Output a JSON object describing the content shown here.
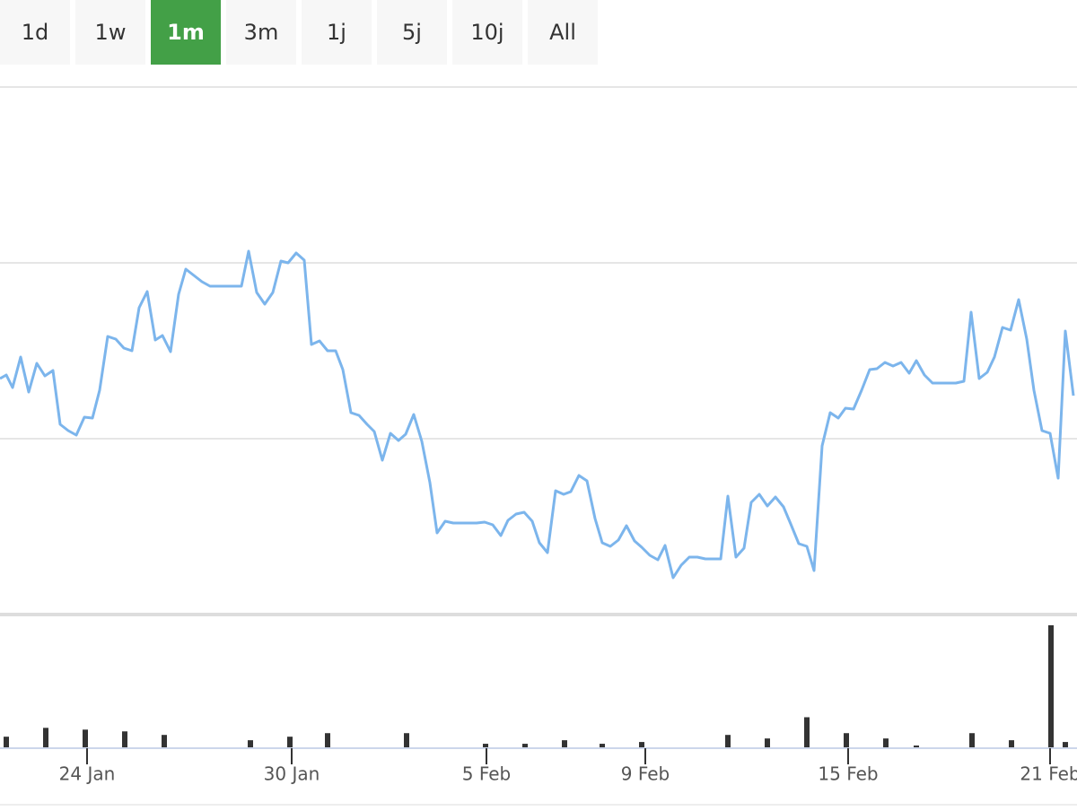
{
  "range_buttons": {
    "labels": [
      "1d",
      "1w",
      "1m",
      "3m",
      "1j",
      "5j",
      "10j",
      "All"
    ],
    "active": "1m",
    "active_color": "#43a047"
  },
  "chart_data": [
    {
      "type": "line",
      "color": "#7cb5ec",
      "xlim": [
        0,
        1200
      ],
      "ylim": [
        0,
        588
      ],
      "yticks": [
        0,
        196,
        392,
        588
      ],
      "grid": true,
      "x": [
        0,
        7,
        14,
        23,
        32,
        41,
        50,
        59,
        67,
        76,
        85,
        94,
        103,
        111,
        120,
        129,
        138,
        147,
        155,
        164,
        173,
        181,
        190,
        199,
        207,
        216,
        225,
        234,
        242,
        251,
        260,
        269,
        277,
        286,
        295,
        304,
        313,
        321,
        330,
        339,
        347,
        356,
        365,
        374,
        382,
        391,
        400,
        409,
        417,
        426,
        435,
        444,
        452,
        461,
        470,
        479,
        487,
        496,
        505,
        514,
        523,
        531,
        540,
        549,
        558,
        566,
        575,
        584,
        593,
        601,
        610,
        619,
        628,
        636,
        645,
        654,
        663,
        671,
        680,
        689,
        698,
        707,
        715,
        724,
        733,
        741,
        750,
        759,
        768,
        777,
        786,
        794,
        803,
        811,
        820,
        829,
        837,
        846,
        855,
        864,
        873,
        881,
        890,
        899,
        907,
        916,
        925,
        934,
        942,
        951,
        960,
        969,
        977,
        986,
        995,
        1004,
        1013,
        1021,
        1030,
        1039,
        1048,
        1057,
        1065,
        1074,
        1082,
        1091,
        1100,
        1108,
        1117,
        1126,
        1135,
        1144,
        1152,
        1161,
        1170,
        1179,
        1187,
        1196
      ],
      "values": [
        263,
        267,
        253,
        287,
        248,
        280,
        266,
        272,
        212,
        205,
        200,
        220,
        219,
        250,
        310,
        307,
        297,
        294,
        342,
        360,
        306,
        311,
        293,
        357,
        385,
        378,
        371,
        366,
        366,
        366,
        366,
        366,
        405,
        359,
        346,
        359,
        394,
        392,
        403,
        395,
        301,
        305,
        294,
        294,
        273,
        225,
        222,
        212,
        204,
        172,
        202,
        194,
        201,
        223,
        193,
        147,
        91,
        104,
        102,
        102,
        102,
        102,
        103,
        100,
        88,
        105,
        112,
        114,
        104,
        80,
        69,
        138,
        134,
        137,
        155,
        149,
        107,
        80,
        76,
        83,
        99,
        82,
        75,
        66,
        61,
        77,
        41,
        55,
        64,
        64,
        62,
        62,
        62,
        132,
        64,
        74,
        125,
        134,
        121,
        131,
        120,
        101,
        79,
        76,
        49,
        188,
        225,
        219,
        230,
        229,
        250,
        273,
        274,
        281,
        277,
        281,
        269,
        283,
        267,
        258,
        258,
        258,
        258,
        260,
        337,
        263,
        270,
        287,
        320,
        317,
        351,
        307,
        250,
        205,
        202,
        152,
        316,
        244
      ]
    },
    {
      "type": "bar",
      "color": "#333333",
      "xlim": [
        0,
        1200
      ],
      "ylim": [
        0,
        140
      ],
      "xticks": [
        {
          "value": 97,
          "label": "24 Jan"
        },
        {
          "value": 325,
          "label": "30 Jan"
        },
        {
          "value": 542,
          "label": "5 Feb"
        },
        {
          "value": 719,
          "label": "9 Feb"
        },
        {
          "value": 945,
          "label": "15 Feb"
        },
        {
          "value": 1170,
          "label": "21 Feb"
        }
      ],
      "x": [
        7,
        51,
        95,
        139,
        183,
        279,
        323,
        365,
        453,
        541,
        585,
        629,
        671,
        715,
        811,
        855,
        899,
        943,
        987,
        1021,
        1083,
        1127,
        1171,
        1187
      ],
      "values": [
        12,
        22,
        20,
        18,
        14,
        8,
        12,
        16,
        16,
        4,
        4,
        8,
        4,
        6,
        14,
        10,
        34,
        16,
        10,
        2,
        16,
        8,
        138,
        6
      ]
    }
  ]
}
